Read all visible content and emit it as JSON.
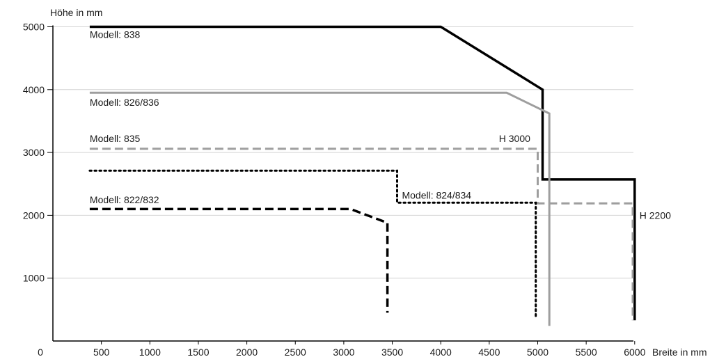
{
  "chart_data": {
    "type": "line",
    "title": "",
    "xlabel": "Breite in mm",
    "ylabel": "Höhe in mm",
    "xlim": [
      0,
      6000
    ],
    "ylim": [
      0,
      5000
    ],
    "x_origin_label": "0",
    "x_ticks": [
      500,
      1000,
      1500,
      2000,
      2500,
      3000,
      3500,
      4000,
      4500,
      5000,
      5500,
      6000
    ],
    "y_ticks": [
      1000,
      2000,
      3000,
      4000,
      5000
    ],
    "grid": "horizontal",
    "series": [
      {
        "name": "Modell: 838",
        "color": "#000000",
        "style": "solid",
        "points": [
          [
            380,
            5000
          ],
          [
            4000,
            5000
          ],
          [
            5050,
            4000
          ],
          [
            5050,
            2570
          ],
          [
            6000,
            2570
          ],
          [
            6000,
            330
          ]
        ]
      },
      {
        "name": "Modell: 826/836",
        "color": "#9e9e9e",
        "style": "solid",
        "points": [
          [
            380,
            3950
          ],
          [
            4680,
            3950
          ],
          [
            5120,
            3620
          ],
          [
            5120,
            240
          ]
        ]
      },
      {
        "name": "Modell: 835",
        "color": "#9e9e9e",
        "style": "dashed",
        "points": [
          [
            380,
            3060
          ],
          [
            5000,
            3060
          ],
          [
            5000,
            2190
          ],
          [
            5980,
            2190
          ],
          [
            5980,
            330
          ]
        ]
      },
      {
        "name": "Modell: 824/834",
        "color": "#000000",
        "style": "dotted",
        "points": [
          [
            380,
            2710
          ],
          [
            3550,
            2710
          ],
          [
            3550,
            2200
          ],
          [
            4980,
            2200
          ],
          [
            4980,
            380
          ]
        ]
      },
      {
        "name": "Modell: 822/832",
        "color": "#000000",
        "style": "dashed",
        "points": [
          [
            380,
            2100
          ],
          [
            3070,
            2100
          ],
          [
            3450,
            1880
          ],
          [
            3450,
            450
          ]
        ]
      }
    ],
    "annotations": [
      {
        "text": "Modell: 838",
        "x": 380,
        "y": 4880
      },
      {
        "text": "Modell: 826/836",
        "x": 380,
        "y": 3800
      },
      {
        "text": "Modell: 835",
        "x": 380,
        "y": 3220
      },
      {
        "text": "Modell: 822/832",
        "x": 380,
        "y": 2250
      },
      {
        "text": "Modell: 824/834",
        "x": 3600,
        "y": 2320
      },
      {
        "text": "H 3000",
        "x": 4600,
        "y": 3220
      },
      {
        "text": "H 2200",
        "x": 6050,
        "y": 2000
      }
    ]
  }
}
